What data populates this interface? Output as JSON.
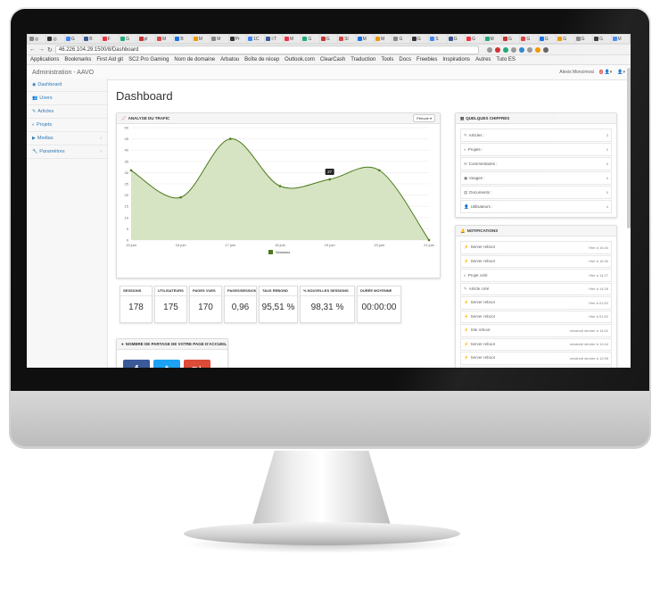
{
  "browser": {
    "tabs": [
      "◎",
      "◎",
      "G",
      "B",
      "F",
      "G",
      "pl",
      "M",
      "B",
      "M",
      "M",
      "Pr",
      "1C",
      "l:T",
      "M",
      "G",
      "G",
      "Sl",
      "M",
      "M",
      "G",
      "G",
      "S",
      "G",
      "G",
      "M",
      "G",
      "G",
      "G",
      "G",
      "G",
      "G",
      "M"
    ],
    "url": "46.226.104.29:1500/8/Dashboard",
    "bookmarks": [
      "Applications",
      "Bookmarks",
      "First Aid git",
      "SC2 Pro Gaming",
      "Nom de domaine",
      "Arbatou",
      "Boîte de récep",
      "Outlook.com",
      "ClearCash",
      "Traduction",
      "Tools",
      "Docs",
      "Freebies",
      "Inspirations",
      "Autres",
      "Tuto ES"
    ]
  },
  "header": {
    "brand": "Administration - AAVO",
    "user": "Alexis Moncimval",
    "badge": "4"
  },
  "sidebar": {
    "items": [
      {
        "label": "Dashboard",
        "icon": "dashboard-icon",
        "glyph": "◉",
        "has_chevron": false
      },
      {
        "label": "Users",
        "icon": "users-icon",
        "glyph": "👥",
        "has_chevron": false
      },
      {
        "label": "Articles",
        "icon": "edit-icon",
        "glyph": "✎",
        "has_chevron": false
      },
      {
        "label": "Projets",
        "icon": "projects-icon",
        "glyph": "◐",
        "has_chevron": false
      },
      {
        "label": "Medias",
        "icon": "media-icon",
        "glyph": "▶",
        "has_chevron": true
      },
      {
        "label": "Paramètres",
        "icon": "wrench-icon",
        "glyph": "🔧",
        "has_chevron": true
      }
    ]
  },
  "page": {
    "title": "Dashboard"
  },
  "traffic": {
    "title": "ANALYSE DU TRAFIC",
    "period_label": "Période ▾"
  },
  "chart_data": {
    "type": "area",
    "x": [
      "15 juin",
      "16 juin",
      "17 juin",
      "18 juin",
      "19 juin",
      "20 juin",
      "21 juin"
    ],
    "series": [
      {
        "name": "Sessions",
        "values": [
          31,
          19,
          45,
          24,
          27,
          31,
          0
        ]
      }
    ],
    "ylim": [
      0,
      50
    ],
    "yticks": [
      0,
      5,
      10,
      15,
      20,
      25,
      30,
      35,
      40,
      45,
      50
    ],
    "grid": true,
    "legend": "bottom-center",
    "tooltip": {
      "x": "19 juin",
      "value": "27"
    },
    "colors": {
      "fill": "#d7e4c3",
      "line": "#4a7a1a",
      "point": "#4a7a1a"
    }
  },
  "stats": [
    {
      "label": "SESSIONS",
      "value": "178"
    },
    {
      "label": "UTILISATEURS",
      "value": "175"
    },
    {
      "label": "PAGES VUES",
      "value": "170"
    },
    {
      "label": "PAGES/SESSION",
      "value": "0,96"
    },
    {
      "label": "TAUX REBOND",
      "value": "95,51 %"
    },
    {
      "label": "% NOUVELLES SESSIONS",
      "value": "98,31 %"
    },
    {
      "label": "DURÉE MOYENNE",
      "value": "00:00:00"
    }
  ],
  "share": {
    "title": "NOMBRE DE PARTAGE DE VOTRE PAGE D'ACCUEIL",
    "buttons": [
      {
        "label": "f",
        "color": "#3b5998"
      },
      {
        "label": "t",
        "color": "#1da1f2"
      },
      {
        "label": "g+",
        "color": "#dd4b39"
      }
    ]
  },
  "figures": {
    "title": "QUELQUES CHIFFRES",
    "rows": [
      {
        "label": "Articles :",
        "value": "3"
      },
      {
        "label": "Projets :",
        "value": "2"
      },
      {
        "label": "Commentaires :",
        "value": "0"
      },
      {
        "label": "Images :",
        "value": "0"
      },
      {
        "label": "Documents :",
        "value": "0"
      },
      {
        "label": "Utilisateurs :",
        "value": "4"
      }
    ]
  },
  "notifications": {
    "title": "NOTIFICATIONS",
    "rows": [
      {
        "label": "Server reboot",
        "time": "Hier à 16:44"
      },
      {
        "label": "Server reboot",
        "time": "Hier à 16:30"
      },
      {
        "label": "Projet créé",
        "time": "Hier à 14:27"
      },
      {
        "label": "Article créé",
        "time": "Hier à 14:26"
      },
      {
        "label": "Server reboot",
        "time": "Hier à 01:52"
      },
      {
        "label": "Server reboot",
        "time": "Hier à 01:52"
      },
      {
        "label": "Site reboot",
        "time": "vendredi dernier à 14:02"
      },
      {
        "label": "Server reboot",
        "time": "vendredi dernier à 13:44"
      },
      {
        "label": "Server reboot",
        "time": "vendredi dernier à 12:55"
      },
      {
        "label": "Server reboot",
        "time": "vendredi dernier à 12:38"
      }
    ]
  }
}
